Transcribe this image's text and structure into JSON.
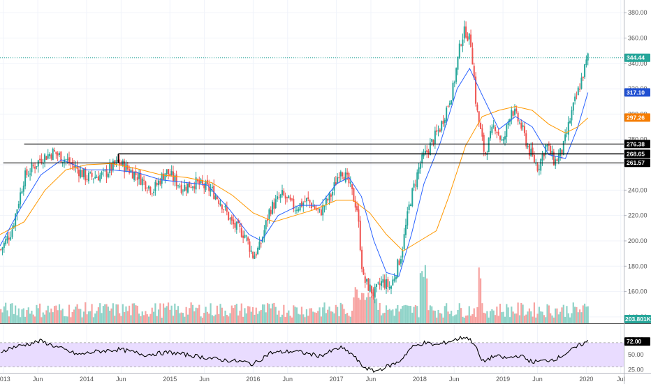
{
  "chart_data": {
    "type": "candlestick",
    "price_axis": {
      "ticks": [
        380,
        360,
        340,
        320,
        300,
        280,
        260,
        240,
        220,
        200,
        180,
        160,
        140
      ],
      "tick_labels": [
        "380.00",
        "360.00",
        "340.00",
        "320.00",
        "300.00",
        "280.00",
        "260.00",
        "240.00",
        "220.00",
        "200.00",
        "180.00",
        "160.00",
        "140.00"
      ],
      "ylim": [
        135,
        390
      ]
    },
    "time_axis": {
      "labels": [
        "2013",
        "Jun",
        "2014",
        "Jun",
        "2015",
        "Jun",
        "2016",
        "Jun",
        "2017",
        "Jun",
        "2018",
        "Jun",
        "2019",
        "Jun",
        "2020",
        "Jul"
      ],
      "xlim": [
        2012.96,
        2020.45
      ]
    },
    "rsi_axis": {
      "tick_labels": [
        "75.00",
        "50.00",
        "25.00"
      ],
      "ticks": [
        75,
        50,
        25
      ],
      "ylim": [
        20,
        100
      ],
      "band": [
        30,
        70
      ]
    },
    "horizontal_levels": [
      276.38,
      268.65,
      261.57
    ],
    "last_price": 344.44,
    "indicator_values": {
      "ma_fast": 317.1,
      "ma_slow": 297.26,
      "rsi": 72.0,
      "volume": "203.801K"
    },
    "labels": {
      "last_price": "344.44",
      "ma_fast": "317.10",
      "ma_slow": "297.26",
      "level_1": "276.38",
      "level_2": "268.65",
      "level_3": "261.57",
      "volume": "203.801K",
      "rsi": "72.00"
    },
    "price_path": [
      [
        2012.96,
        192
      ],
      [
        2013.1,
        208
      ],
      [
        2013.25,
        250
      ],
      [
        2013.45,
        265
      ],
      [
        2013.6,
        270
      ],
      [
        2013.75,
        264
      ],
      [
        2013.9,
        256
      ],
      [
        2014.0,
        250
      ],
      [
        2014.2,
        252
      ],
      [
        2014.38,
        262
      ],
      [
        2014.6,
        252
      ],
      [
        2014.8,
        240
      ],
      [
        2014.95,
        255
      ],
      [
        2015.15,
        242
      ],
      [
        2015.3,
        246
      ],
      [
        2015.5,
        240
      ],
      [
        2015.62,
        230
      ],
      [
        2015.75,
        213
      ],
      [
        2015.9,
        205
      ],
      [
        2016.0,
        188
      ],
      [
        2016.08,
        195
      ],
      [
        2016.2,
        225
      ],
      [
        2016.35,
        236
      ],
      [
        2016.5,
        226
      ],
      [
        2016.65,
        232
      ],
      [
        2016.8,
        222
      ],
      [
        2016.95,
        238
      ],
      [
        2017.05,
        258
      ],
      [
        2017.15,
        245
      ],
      [
        2017.25,
        225
      ],
      [
        2017.32,
        170
      ],
      [
        2017.45,
        158
      ],
      [
        2017.55,
        168
      ],
      [
        2017.65,
        163
      ],
      [
        2017.78,
        190
      ],
      [
        2017.88,
        230
      ],
      [
        2018.0,
        260
      ],
      [
        2018.1,
        272
      ],
      [
        2018.25,
        290
      ],
      [
        2018.4,
        320
      ],
      [
        2018.5,
        360
      ],
      [
        2018.55,
        366
      ],
      [
        2018.62,
        355
      ],
      [
        2018.68,
        305
      ],
      [
        2018.78,
        268
      ],
      [
        2018.9,
        292
      ],
      [
        2019.0,
        276
      ],
      [
        2019.1,
        305
      ],
      [
        2019.22,
        290
      ],
      [
        2019.32,
        270
      ],
      [
        2019.42,
        258
      ],
      [
        2019.52,
        276
      ],
      [
        2019.62,
        262
      ],
      [
        2019.72,
        272
      ],
      [
        2019.82,
        300
      ],
      [
        2019.92,
        322
      ],
      [
        2020.02,
        345
      ]
    ],
    "ma_fast_path": [
      [
        2012.96,
        196
      ],
      [
        2013.2,
        225
      ],
      [
        2013.45,
        252
      ],
      [
        2013.7,
        264
      ],
      [
        2014.0,
        256
      ],
      [
        2014.3,
        256
      ],
      [
        2014.6,
        254
      ],
      [
        2014.9,
        248
      ],
      [
        2015.2,
        246
      ],
      [
        2015.45,
        244
      ],
      [
        2015.7,
        226
      ],
      [
        2015.95,
        205
      ],
      [
        2016.1,
        200
      ],
      [
        2016.3,
        220
      ],
      [
        2016.55,
        228
      ],
      [
        2016.8,
        228
      ],
      [
        2017.0,
        245
      ],
      [
        2017.15,
        250
      ],
      [
        2017.3,
        235
      ],
      [
        2017.45,
        200
      ],
      [
        2017.6,
        175
      ],
      [
        2017.75,
        172
      ],
      [
        2017.9,
        205
      ],
      [
        2018.05,
        245
      ],
      [
        2018.25,
        278
      ],
      [
        2018.45,
        320
      ],
      [
        2018.6,
        336
      ],
      [
        2018.75,
        315
      ],
      [
        2018.95,
        288
      ],
      [
        2019.15,
        298
      ],
      [
        2019.35,
        290
      ],
      [
        2019.55,
        268
      ],
      [
        2019.75,
        265
      ],
      [
        2019.9,
        290
      ],
      [
        2020.02,
        317
      ]
    ],
    "ma_slow_path": [
      [
        2012.96,
        205
      ],
      [
        2013.25,
        215
      ],
      [
        2013.5,
        240
      ],
      [
        2013.75,
        256
      ],
      [
        2014.0,
        260
      ],
      [
        2014.3,
        261
      ],
      [
        2014.6,
        257
      ],
      [
        2014.9,
        252
      ],
      [
        2015.2,
        250
      ],
      [
        2015.5,
        246
      ],
      [
        2015.75,
        236
      ],
      [
        2016.0,
        222
      ],
      [
        2016.25,
        215
      ],
      [
        2016.5,
        220
      ],
      [
        2016.75,
        225
      ],
      [
        2017.0,
        232
      ],
      [
        2017.2,
        232
      ],
      [
        2017.4,
        222
      ],
      [
        2017.6,
        205
      ],
      [
        2017.8,
        192
      ],
      [
        2018.0,
        200
      ],
      [
        2018.2,
        208
      ],
      [
        2018.35,
        235
      ],
      [
        2018.55,
        275
      ],
      [
        2018.75,
        298
      ],
      [
        2018.95,
        303
      ],
      [
        2019.15,
        306
      ],
      [
        2019.35,
        303
      ],
      [
        2019.55,
        292
      ],
      [
        2019.75,
        285
      ],
      [
        2019.9,
        290
      ],
      [
        2020.02,
        297
      ]
    ],
    "rsi_path": [
      [
        2012.96,
        55
      ],
      [
        2013.1,
        62
      ],
      [
        2013.3,
        68
      ],
      [
        2013.45,
        73
      ],
      [
        2013.7,
        60
      ],
      [
        2013.9,
        50
      ],
      [
        2014.1,
        55
      ],
      [
        2014.4,
        59
      ],
      [
        2014.7,
        50
      ],
      [
        2015.0,
        54
      ],
      [
        2015.3,
        48
      ],
      [
        2015.6,
        42
      ],
      [
        2015.9,
        38
      ],
      [
        2016.0,
        34
      ],
      [
        2016.2,
        53
      ],
      [
        2016.5,
        56
      ],
      [
        2016.8,
        48
      ],
      [
        2017.05,
        62
      ],
      [
        2017.2,
        50
      ],
      [
        2017.3,
        32
      ],
      [
        2017.45,
        22
      ],
      [
        2017.6,
        30
      ],
      [
        2017.75,
        38
      ],
      [
        2017.9,
        62
      ],
      [
        2018.05,
        70
      ],
      [
        2018.2,
        66
      ],
      [
        2018.4,
        74
      ],
      [
        2018.55,
        80
      ],
      [
        2018.65,
        70
      ],
      [
        2018.75,
        38
      ],
      [
        2018.9,
        48
      ],
      [
        2019.05,
        44
      ],
      [
        2019.2,
        49
      ],
      [
        2019.35,
        38
      ],
      [
        2019.5,
        40
      ],
      [
        2019.65,
        44
      ],
      [
        2019.8,
        56
      ],
      [
        2019.95,
        68
      ],
      [
        2020.02,
        72
      ]
    ],
    "colors": {
      "up": "#26a69a",
      "down": "#ef5350",
      "ma_fast": "#2962ff",
      "ma_slow": "#ff9800",
      "rsi": "#000000",
      "rsi_band": "#e9dcff",
      "last_price": "#26a69a",
      "level": "#000000",
      "ma_fast_tag": "#1f4fd1",
      "ma_slow_tag": "#f57c00",
      "level_tag": "#000000",
      "volume_tag": "#26a69a"
    }
  }
}
